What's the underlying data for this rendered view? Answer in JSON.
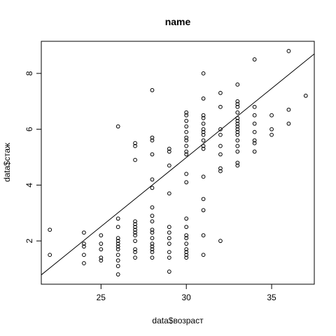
{
  "chart_data": {
    "type": "scatter",
    "title": "name",
    "xlabel": "data$возраст",
    "ylabel": "data$стаж",
    "xlim": [
      21.5,
      37.5
    ],
    "ylim": [
      0.45,
      9.15
    ],
    "xticks": [
      25,
      30,
      35
    ],
    "yticks": [
      2,
      4,
      6,
      8
    ],
    "grid": false,
    "regression_line": {
      "intercept": -9.85,
      "slope": 0.4946
    },
    "points": [
      [
        22,
        2.4
      ],
      [
        22,
        1.5
      ],
      [
        24,
        2.3
      ],
      [
        24,
        1.9
      ],
      [
        24,
        1.8
      ],
      [
        24,
        1.5
      ],
      [
        24,
        1.2
      ],
      [
        25,
        2.2
      ],
      [
        25,
        1.9
      ],
      [
        25,
        1.7
      ],
      [
        25,
        1.4
      ],
      [
        25,
        1.3
      ],
      [
        26,
        6.1
      ],
      [
        26,
        2.8
      ],
      [
        26,
        2.5
      ],
      [
        26,
        2.1
      ],
      [
        26,
        2.0
      ],
      [
        26,
        1.9
      ],
      [
        26,
        1.8
      ],
      [
        26,
        1.7
      ],
      [
        26,
        1.5
      ],
      [
        26,
        1.3
      ],
      [
        26,
        1.1
      ],
      [
        26,
        0.8
      ],
      [
        27,
        5.5
      ],
      [
        27,
        5.4
      ],
      [
        27,
        4.9
      ],
      [
        27,
        2.7
      ],
      [
        27,
        2.6
      ],
      [
        27,
        2.5
      ],
      [
        27,
        2.4
      ],
      [
        27,
        2.3
      ],
      [
        27,
        2.2
      ],
      [
        27,
        2.0
      ],
      [
        27,
        1.7
      ],
      [
        27,
        1.6
      ],
      [
        27,
        1.4
      ],
      [
        28,
        7.4
      ],
      [
        28,
        5.7
      ],
      [
        28,
        5.6
      ],
      [
        28,
        5.1
      ],
      [
        28,
        4.2
      ],
      [
        28,
        3.9
      ],
      [
        28,
        3.2
      ],
      [
        28,
        2.9
      ],
      [
        28,
        2.7
      ],
      [
        28,
        2.4
      ],
      [
        28,
        2.3
      ],
      [
        28,
        2.1
      ],
      [
        28,
        1.9
      ],
      [
        28,
        1.8
      ],
      [
        28,
        1.7
      ],
      [
        28,
        1.6
      ],
      [
        28,
        1.4
      ],
      [
        29,
        5.3
      ],
      [
        29,
        5.2
      ],
      [
        29,
        4.7
      ],
      [
        29,
        3.7
      ],
      [
        29,
        2.5
      ],
      [
        29,
        2.3
      ],
      [
        29,
        2.1
      ],
      [
        29,
        1.9
      ],
      [
        29,
        1.6
      ],
      [
        29,
        1.4
      ],
      [
        29,
        0.9
      ],
      [
        30,
        6.6
      ],
      [
        30,
        6.5
      ],
      [
        30,
        6.3
      ],
      [
        30,
        6.1
      ],
      [
        30,
        5.9
      ],
      [
        30,
        5.7
      ],
      [
        30,
        5.6
      ],
      [
        30,
        5.4
      ],
      [
        30,
        5.2
      ],
      [
        30,
        5.1
      ],
      [
        30,
        4.4
      ],
      [
        30,
        4.1
      ],
      [
        30,
        2.8
      ],
      [
        30,
        2.5
      ],
      [
        30,
        2.2
      ],
      [
        30,
        2.1
      ],
      [
        30,
        1.9
      ],
      [
        30,
        1.7
      ],
      [
        30,
        1.6
      ],
      [
        30,
        1.5
      ],
      [
        30,
        1.4
      ],
      [
        31,
        8.0
      ],
      [
        31,
        7.1
      ],
      [
        31,
        6.5
      ],
      [
        31,
        6.4
      ],
      [
        31,
        6.2
      ],
      [
        31,
        6.0
      ],
      [
        31,
        5.9
      ],
      [
        31,
        5.8
      ],
      [
        31,
        5.6
      ],
      [
        31,
        5.4
      ],
      [
        31,
        5.3
      ],
      [
        31,
        4.3
      ],
      [
        31,
        3.5
      ],
      [
        31,
        3.1
      ],
      [
        31,
        2.2
      ],
      [
        31,
        1.5
      ],
      [
        32,
        7.3
      ],
      [
        32,
        6.8
      ],
      [
        32,
        6.0
      ],
      [
        32,
        5.8
      ],
      [
        32,
        5.4
      ],
      [
        32,
        5.1
      ],
      [
        32,
        4.6
      ],
      [
        32,
        4.5
      ],
      [
        32,
        2.0
      ],
      [
        33,
        7.6
      ],
      [
        33,
        7.0
      ],
      [
        33,
        6.9
      ],
      [
        33,
        6.8
      ],
      [
        33,
        6.6
      ],
      [
        33,
        6.4
      ],
      [
        33,
        6.3
      ],
      [
        33,
        6.2
      ],
      [
        33,
        6.1
      ],
      [
        33,
        6.0
      ],
      [
        33,
        5.9
      ],
      [
        33,
        5.8
      ],
      [
        33,
        5.6
      ],
      [
        33,
        5.4
      ],
      [
        33,
        5.2
      ],
      [
        33,
        4.8
      ],
      [
        33,
        4.7
      ],
      [
        34,
        8.5
      ],
      [
        34,
        6.8
      ],
      [
        34,
        6.5
      ],
      [
        34,
        6.2
      ],
      [
        34,
        5.9
      ],
      [
        34,
        5.6
      ],
      [
        34,
        5.5
      ],
      [
        34,
        5.2
      ],
      [
        35,
        6.5
      ],
      [
        35,
        6.0
      ],
      [
        35,
        5.8
      ],
      [
        36,
        8.8
      ],
      [
        36,
        6.7
      ],
      [
        36,
        6.2
      ],
      [
        37,
        7.2
      ]
    ]
  }
}
